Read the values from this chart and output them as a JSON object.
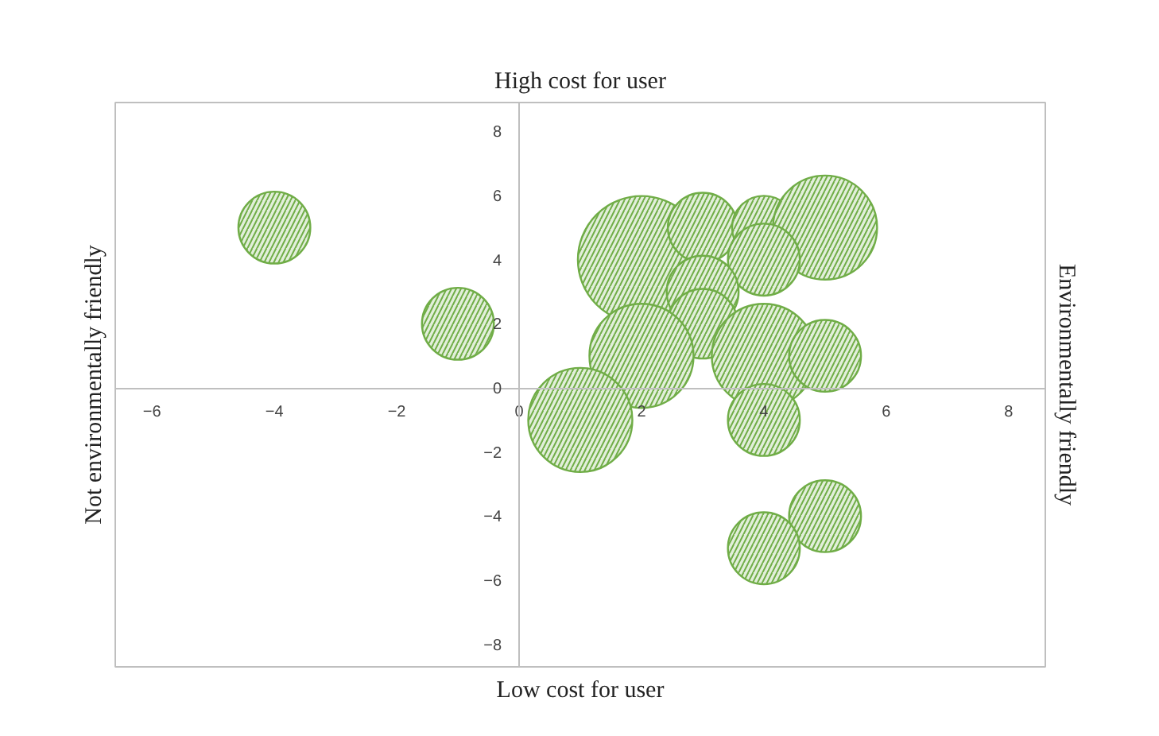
{
  "chart_data": {
    "type": "bubble",
    "title": "High cost for user",
    "xlabel": "Low cost for user",
    "ylabel": "Not environmentally friendly",
    "y2label": "Environmentally friendly",
    "x": [
      -4,
      -1,
      2,
      3,
      4,
      5,
      4,
      3,
      3,
      2,
      4,
      5,
      1,
      4,
      5,
      4
    ],
    "values": [
      5,
      2,
      4,
      5,
      5,
      5,
      4,
      3,
      2,
      1,
      1,
      1,
      -1,
      -1,
      -4,
      -5
    ],
    "sizes": [
      0.32,
      0.32,
      1,
      0.3,
      0.25,
      0.67,
      0.32,
      0.32,
      0.3,
      0.67,
      0.67,
      0.32,
      0.67,
      0.32,
      0.32,
      0.32
    ],
    "color": "#70ad47",
    "xlim": [
      -6.6,
      8.6
    ],
    "ylim": [
      -8.7,
      8.9
    ],
    "xticks": [
      -6,
      -4,
      -2,
      0,
      2,
      4,
      6,
      8
    ],
    "yticks": [
      -8,
      -6,
      -4,
      -2,
      0,
      2,
      4,
      6,
      8
    ],
    "grid": false
  }
}
